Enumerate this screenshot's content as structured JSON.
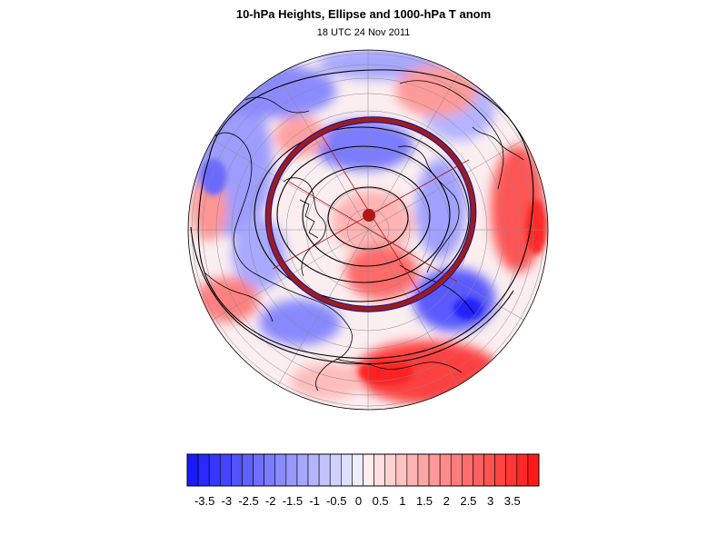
{
  "figure": {
    "title": "10-hPa Heights, Ellipse and 1000-hPa T anom",
    "subtitle": "18 UTC 24 Nov 2011"
  },
  "colorbar": {
    "tick_labels": [
      "-3.5",
      "-3",
      "-2.5",
      "-2",
      "-1.5",
      "-1",
      "-0.5",
      "0",
      "0.5",
      "1",
      "1.5",
      "2",
      "2.5",
      "3",
      "3.5"
    ],
    "levels_min": -4,
    "levels_max": 4,
    "levels_step": 0.25,
    "colors": {
      "negative_end": "#1a1aff",
      "neutral": "#ffffff",
      "positive_end": "#ff1a1a"
    }
  },
  "map": {
    "projection": "north polar orthographic",
    "ellipse_color": "#9b1c1c",
    "ellipse_edge_color": "#1010a0",
    "center_marker_color": "#b01818",
    "contour_color": "#000000",
    "grid_color": "#888888"
  }
}
